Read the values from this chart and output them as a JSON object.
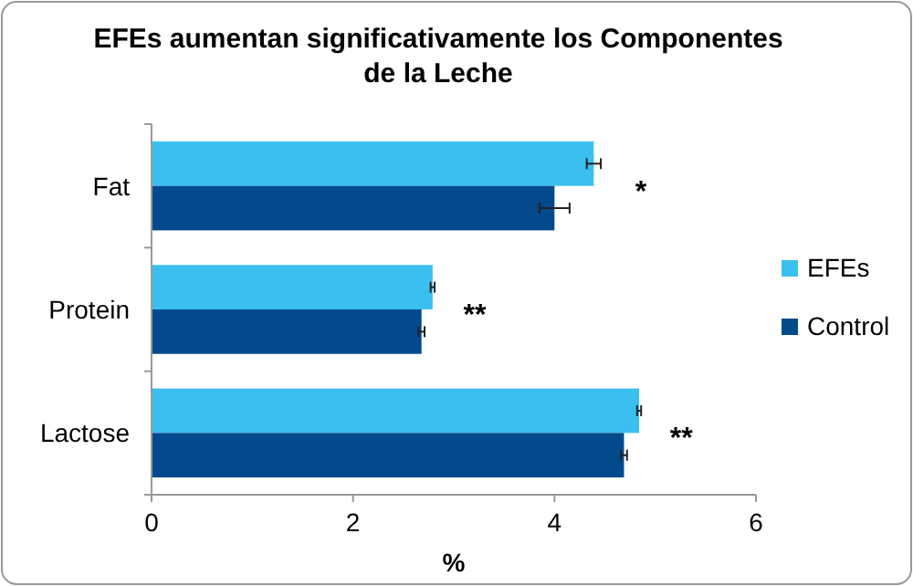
{
  "chart_data": {
    "type": "bar",
    "orientation": "horizontal",
    "title": "EFEs aumentan significativamente los Componentes de la Leche",
    "xlabel": "%",
    "categories": [
      "Fat",
      "Protein",
      "Lactose"
    ],
    "series": [
      {
        "name": "EFEs",
        "color": "#3bbfef",
        "values": [
          4.39,
          2.79,
          4.84
        ],
        "errors": [
          0.07,
          0.02,
          0.02
        ]
      },
      {
        "name": "Control",
        "color": "#034a8c",
        "values": [
          4.0,
          2.68,
          4.69
        ],
        "errors": [
          0.15,
          0.03,
          0.03
        ]
      }
    ],
    "xlim": [
      0,
      6
    ],
    "xticks": [
      0,
      2,
      4,
      6
    ],
    "legend": "right",
    "grid": false,
    "annotations": [
      "*",
      "**",
      "**"
    ]
  }
}
